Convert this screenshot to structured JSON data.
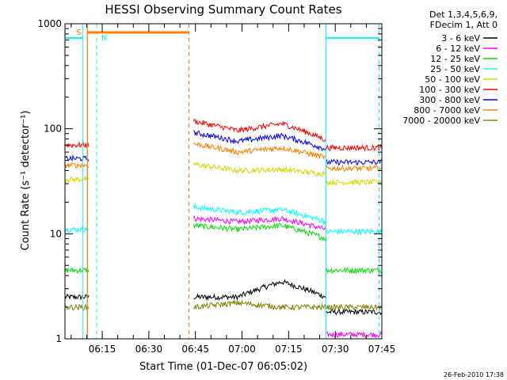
{
  "chart_data": {
    "type": "line",
    "title": "HESSI Observing Summary Count Rates",
    "xlabel": "Start Time (01-Dec-07 06:05:02)",
    "ylabel": "Count Rate (s⁻¹ detector⁻¹)",
    "yscale": "log",
    "ylim": [
      1,
      1000
    ],
    "y_tick_labels": [
      "1",
      "10",
      "100",
      "1000"
    ],
    "x_range_minutes": [
      6.05,
      7.75
    ],
    "x_ticks": [
      {
        "label": "06:15",
        "minute": 6.25
      },
      {
        "label": "06:30",
        "minute": 6.5
      },
      {
        "label": "06:45",
        "minute": 6.75
      },
      {
        "label": "07:00",
        "minute": 7.0
      },
      {
        "label": "07:15",
        "minute": 7.25
      },
      {
        "label": "07:30",
        "minute": 7.5
      },
      {
        "label": "07:45",
        "minute": 7.75
      }
    ],
    "legend_header": [
      "Det 1,3,4,5,6,9,",
      "FDecim 1, Att 0"
    ],
    "legend_position": "right",
    "series": [
      {
        "name": "3 - 6 keV",
        "color": "#000000",
        "before": 2.5,
        "after": [
          2.5,
          2.5,
          3.5,
          2.5
        ],
        "tail": 1.8
      },
      {
        "name": "6 - 12 keV",
        "color": "#ff00ff",
        "before": null,
        "after": [
          14,
          13,
          14,
          11
        ],
        "tail": 1.1
      },
      {
        "name": "12 - 25 keV",
        "color": "#00e000",
        "before": 4.5,
        "after": [
          12,
          11,
          12,
          9
        ],
        "tail": 4.5
      },
      {
        "name": "25 - 50 keV",
        "color": "#00ffff",
        "before": 11,
        "after": [
          18,
          16,
          17,
          13
        ],
        "tail": 10.5
      },
      {
        "name": "50 - 100 keV",
        "color": "#d8d800",
        "before": 33,
        "after": [
          46,
          40,
          41,
          37
        ],
        "tail": 31
      },
      {
        "name": "100 - 300 keV",
        "color": "#ff0000",
        "before": 70,
        "after": [
          118,
          96,
          112,
          78
        ],
        "tail": 66
      },
      {
        "name": "300 - 800 keV",
        "color": "#0000ff",
        "before": 52,
        "after": [
          92,
          76,
          86,
          64
        ],
        "tail": 48
      },
      {
        "name": "800 - 7000 keV",
        "color": "#ff8000",
        "before": 45,
        "after": [
          72,
          60,
          66,
          53
        ],
        "tail": 42
      },
      {
        "name": "7000 - 20000 keV",
        "color": "#808000",
        "before": 2.0,
        "after": [
          2.0,
          2.2,
          2.0,
          2.0
        ],
        "tail": 2.0
      }
    ],
    "annotations": [
      {
        "label": "S",
        "color": "#ff8000"
      },
      {
        "label": "N",
        "color": "#00ffff"
      }
    ],
    "footer": "26-Feb-2010 17:38"
  }
}
